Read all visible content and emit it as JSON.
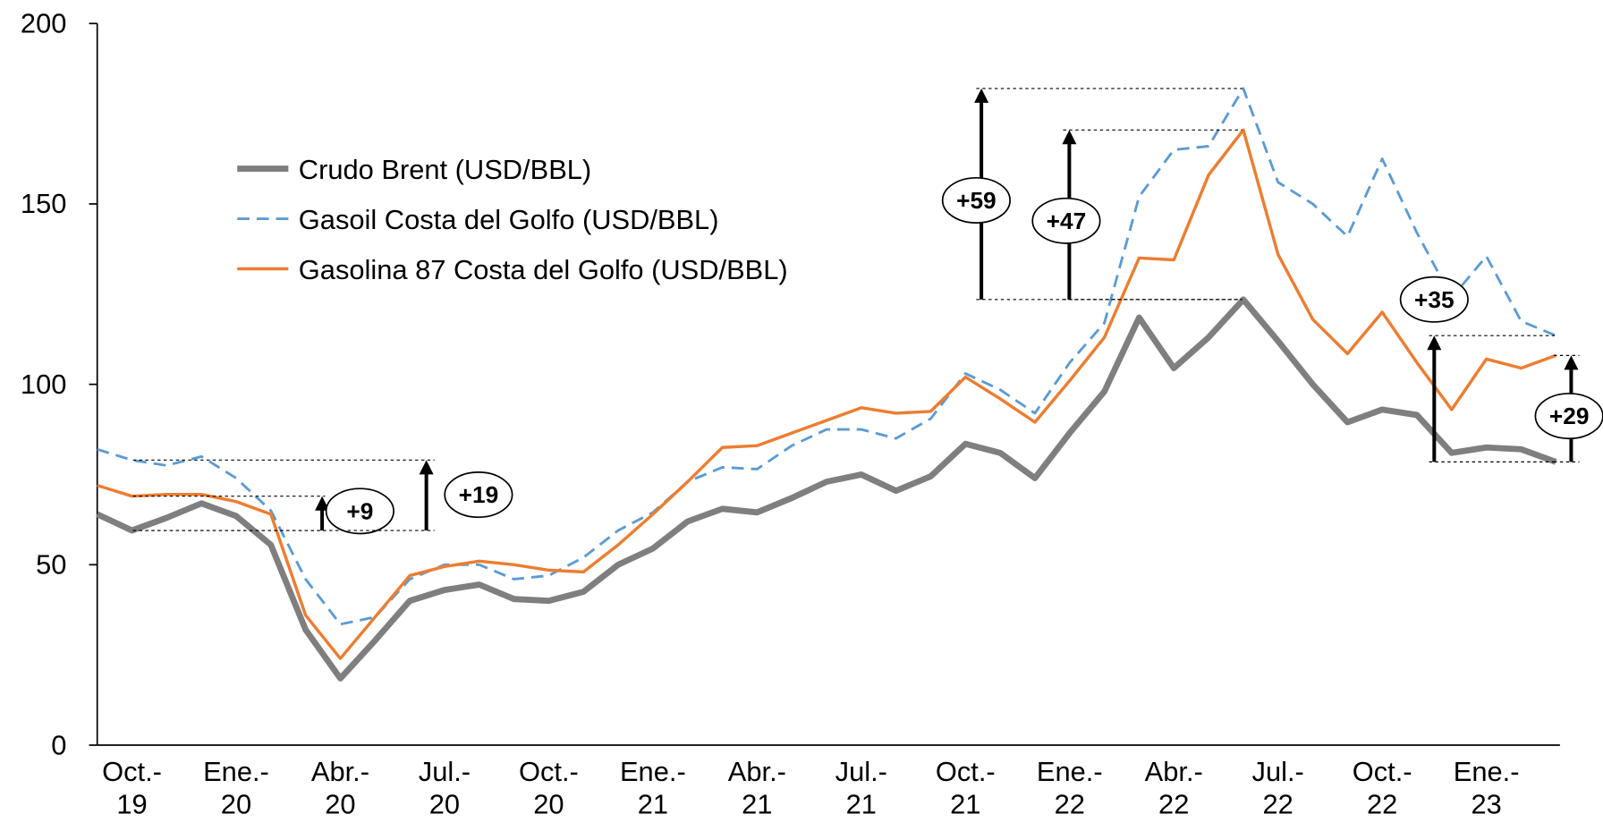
{
  "chart_data": {
    "type": "line",
    "categories": [
      null,
      "Oct.-\n19",
      null,
      null,
      "Ene.-\n20",
      null,
      null,
      "Abr.-\n20",
      null,
      null,
      "Jul.-\n20",
      null,
      null,
      "Oct.-\n20",
      null,
      null,
      "Ene.-\n21",
      null,
      null,
      "Abr.-\n21",
      null,
      null,
      "Jul.-\n21",
      null,
      null,
      "Oct.-\n21",
      null,
      null,
      "Ene.-\n22",
      null,
      null,
      "Abr.-\n22",
      null,
      null,
      "Jul.-\n22",
      null,
      null,
      "Oct.-\n22",
      null,
      null,
      "Ene.-\n23",
      null,
      null
    ],
    "series": [
      {
        "name": "Crudo Brent (USD/BBL)",
        "color": "#7f7f7f",
        "style": "solid",
        "width": 6,
        "values": [
          64,
          59.5,
          63,
          67,
          63.5,
          55.5,
          32,
          18.5,
          29,
          40,
          43,
          44.5,
          40.5,
          40,
          42.5,
          50,
          54.5,
          62,
          65.5,
          64.5,
          68.5,
          73,
          75,
          70.5,
          74.5,
          83.5,
          81,
          74,
          86.5,
          98,
          118.5,
          104.5,
          113,
          123.5,
          112,
          100,
          89.5,
          93,
          91.5,
          81,
          82.5,
          82,
          78.5
        ]
      },
      {
        "name": "Gasoil Costa del Golfo (USD/BBL)",
        "color": "#5b9bd5",
        "style": "dashed",
        "width": 2.5,
        "values": [
          82,
          79,
          77.5,
          80,
          74,
          65,
          46,
          33.5,
          35.5,
          46,
          50,
          50,
          46,
          47,
          52,
          59.5,
          64.5,
          73,
          77,
          76.5,
          83,
          87.5,
          87.5,
          85,
          90.5,
          103,
          98.5,
          92,
          106,
          117,
          152,
          165,
          166,
          182,
          156,
          150,
          141,
          162.5,
          142,
          124,
          135.5,
          117.5,
          113.5
        ]
      },
      {
        "name": "Gasolina 87 Costa del Golfo (USD/BBL)",
        "color": "#ed7d31",
        "style": "solid",
        "width": 3,
        "values": [
          72,
          69,
          69.5,
          69.5,
          67.5,
          64,
          36,
          24,
          35.5,
          47,
          49.5,
          51,
          50,
          48.5,
          48,
          55.5,
          64,
          73,
          82.5,
          83,
          86.5,
          90,
          93.5,
          92,
          92.5,
          102,
          96,
          89.5,
          101,
          113,
          135,
          134.5,
          158,
          170.5,
          136,
          118,
          108.5,
          120,
          106,
          93,
          107,
          104.5,
          108
        ]
      }
    ],
    "ylim": [
      0,
      200
    ],
    "yticks": [
      0,
      50,
      100,
      150,
      200
    ],
    "grid": false,
    "legend": "upper left",
    "annotations": [
      "+9",
      "+19",
      "+59",
      "+47",
      "+35",
      "+29"
    ]
  }
}
